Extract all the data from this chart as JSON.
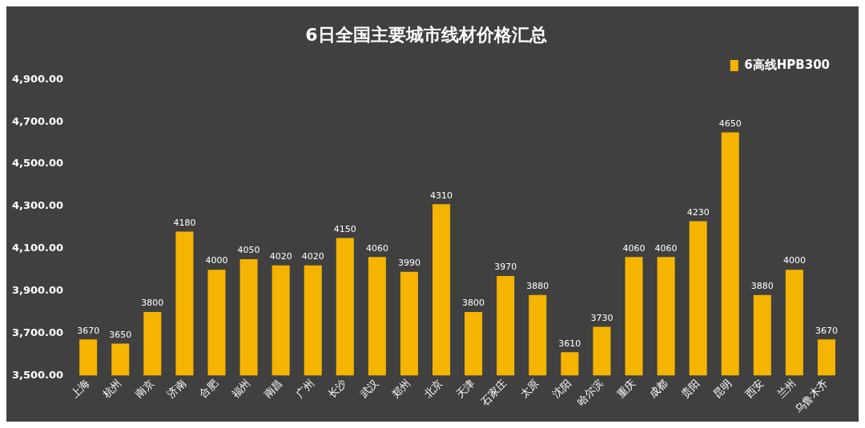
{
  "chart_data": {
    "type": "bar",
    "title": "6日全国主要城市线材价格汇总",
    "categories": [
      "上海",
      "杭州",
      "南京",
      "济南",
      "合肥",
      "福州",
      "南昌",
      "广州",
      "长沙",
      "武汉",
      "郑州",
      "北京",
      "天津",
      "石家庄",
      "太原",
      "沈阳",
      "哈尔滨",
      "重庆",
      "成都",
      "贵阳",
      "昆明",
      "西安",
      "兰州",
      "乌鲁木齐"
    ],
    "series": [
      {
        "name": "6高线HPB300",
        "color": "#f5b400",
        "values": [
          3670,
          3650,
          3800,
          4180,
          4000,
          4050,
          4020,
          4020,
          4150,
          4060,
          3990,
          4310,
          3800,
          3970,
          3880,
          3610,
          3730,
          4060,
          4060,
          4230,
          4650,
          3880,
          4000,
          3670
        ]
      }
    ],
    "ylim": [
      3500,
      4900
    ],
    "yticks": [
      {
        "value": 3500,
        "label": "3,500.00"
      },
      {
        "value": 3700,
        "label": "3,700.00"
      },
      {
        "value": 3900,
        "label": "3,900.00"
      },
      {
        "value": 4100,
        "label": "4,100.00"
      },
      {
        "value": 4300,
        "label": "4,300.00"
      },
      {
        "value": 4500,
        "label": "4,500.00"
      },
      {
        "value": 4700,
        "label": "4,700.00"
      },
      {
        "value": 4900,
        "label": "4,900.00"
      }
    ],
    "data_labels": true,
    "grid": false,
    "legend": "top right"
  }
}
